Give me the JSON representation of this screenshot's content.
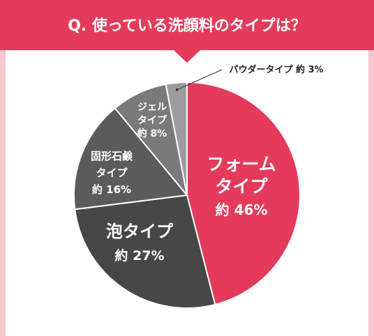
{
  "question": "Q. 使っている洗顔料のタイプは？",
  "colors": {
    "accent": "#e43b5c",
    "frame": "#f7c6d0",
    "foam": "#e43b5c",
    "awa": "#474747",
    "koke": "#5b5b5b",
    "gel": "#7a7a7a",
    "powder": "#9c9c9c"
  },
  "chart_data": {
    "type": "pie",
    "title": "Q. 使っている洗顔料のタイプは？",
    "start": "12 o'clock, clockwise",
    "slices": [
      {
        "key": "foam",
        "label": [
          "フォーム",
          "タイプ"
        ],
        "prefix": "約",
        "value": 46,
        "unit": "%"
      },
      {
        "key": "awa",
        "label": [
          "泡タイプ"
        ],
        "prefix": "約",
        "value": 27,
        "unit": "%"
      },
      {
        "key": "koke",
        "label": [
          "固形石鹸",
          "タイプ"
        ],
        "prefix": "約",
        "value": 16,
        "unit": "%"
      },
      {
        "key": "gel",
        "label": [
          "ジェル",
          "タイプ"
        ],
        "prefix": "約",
        "value": 8,
        "unit": "%"
      },
      {
        "key": "powder",
        "label": [
          "パウダータイプ"
        ],
        "prefix": "約",
        "value": 3,
        "unit": "%"
      }
    ]
  }
}
